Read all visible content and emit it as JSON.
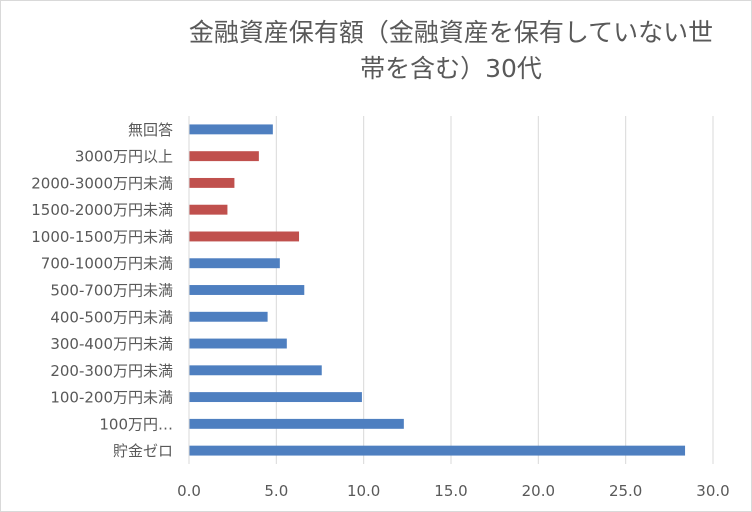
{
  "chart_data": {
    "type": "bar",
    "orientation": "horizontal",
    "title": "金融資産保有額（金融資産を保有していない世帯を含む）30代",
    "title_lines": [
      "金融資産保有額（金融資産を保有していない世",
      "帯を含む）30代"
    ],
    "categories": [
      "無回答",
      "3000万円以上",
      "2000-3000万円未満",
      "1500-2000万円未満",
      "1000-1500万円未満",
      "700-1000万円未満",
      "500-700万円未満",
      "400-500万円未満",
      "300-400万円未満",
      "200-300万円未満",
      "100-200万円未満",
      "100万円…",
      "貯金ゼロ"
    ],
    "values": [
      4.8,
      4.0,
      2.6,
      2.2,
      6.3,
      5.2,
      6.6,
      4.5,
      5.6,
      7.6,
      9.9,
      12.3,
      28.4
    ],
    "bar_colors": [
      "#4e7fc0",
      "#c0504d",
      "#c0504d",
      "#c0504d",
      "#c0504d",
      "#4e7fc0",
      "#4e7fc0",
      "#4e7fc0",
      "#4e7fc0",
      "#4e7fc0",
      "#4e7fc0",
      "#4e7fc0",
      "#4e7fc0"
    ],
    "xlim": [
      0,
      30
    ],
    "xticks": [
      0,
      5,
      10,
      15,
      20,
      25,
      30
    ],
    "xtick_labels": [
      "0.0",
      "5.0",
      "10.0",
      "15.0",
      "20.0",
      "25.0",
      "30.0"
    ],
    "grid": "vertical",
    "legend": "none",
    "xlabel": "",
    "ylabel": ""
  }
}
